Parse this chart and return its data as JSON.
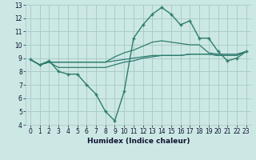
{
  "xlabel": "Humidex (Indice chaleur)",
  "xlim": [
    -0.5,
    23.5
  ],
  "ylim": [
    4,
    13
  ],
  "xticks": [
    0,
    1,
    2,
    3,
    4,
    5,
    6,
    7,
    8,
    9,
    10,
    11,
    12,
    13,
    14,
    15,
    16,
    17,
    18,
    19,
    20,
    21,
    22,
    23
  ],
  "yticks": [
    4,
    5,
    6,
    7,
    8,
    9,
    10,
    11,
    12,
    13
  ],
  "bg_color": "#cce8e4",
  "grid_color": "#aacccc",
  "line_color": "#2e7c6e",
  "main_x": [
    0,
    1,
    2,
    3,
    4,
    5,
    6,
    7,
    8,
    9,
    10,
    11,
    12,
    13,
    14,
    15,
    16,
    17,
    18,
    19,
    20,
    21,
    22,
    23
  ],
  "main_y": [
    8.9,
    8.5,
    8.8,
    8.0,
    7.8,
    7.8,
    7.0,
    6.3,
    5.0,
    4.3,
    6.5,
    10.5,
    11.5,
    12.3,
    12.8,
    12.3,
    11.5,
    11.8,
    10.5,
    10.5,
    9.5,
    8.8,
    9.0,
    9.5
  ],
  "flat1_x": [
    0,
    1,
    2,
    3,
    4,
    5,
    6,
    7,
    8,
    9,
    10,
    11,
    12,
    13,
    14,
    15,
    16,
    17,
    18,
    19,
    20,
    21,
    22,
    23
  ],
  "flat1_y": [
    8.9,
    8.5,
    8.7,
    8.7,
    8.7,
    8.7,
    8.7,
    8.7,
    8.7,
    8.8,
    8.9,
    9.0,
    9.1,
    9.2,
    9.2,
    9.2,
    9.2,
    9.3,
    9.3,
    9.3,
    9.2,
    9.2,
    9.2,
    9.5
  ],
  "flat2_x": [
    0,
    1,
    2,
    3,
    4,
    5,
    6,
    7,
    8,
    9,
    10,
    11,
    12,
    13,
    14,
    15,
    16,
    17,
    18,
    19,
    20,
    21,
    22,
    23
  ],
  "flat2_y": [
    8.9,
    8.5,
    8.7,
    8.7,
    8.7,
    8.7,
    8.7,
    8.7,
    8.7,
    9.1,
    9.4,
    9.6,
    9.9,
    10.2,
    10.3,
    10.2,
    10.1,
    10.0,
    10.0,
    9.4,
    9.3,
    9.3,
    9.3,
    9.5
  ],
  "flat3_x": [
    0,
    1,
    2,
    3,
    4,
    5,
    6,
    7,
    8,
    9,
    10,
    11,
    12,
    13,
    14,
    15,
    16,
    17,
    18,
    19,
    20,
    21,
    22,
    23
  ],
  "flat3_y": [
    8.9,
    8.5,
    8.7,
    8.3,
    8.3,
    8.3,
    8.3,
    8.3,
    8.3,
    8.5,
    8.7,
    8.8,
    9.0,
    9.1,
    9.2,
    9.2,
    9.2,
    9.3,
    9.3,
    9.3,
    9.2,
    9.2,
    9.2,
    9.5
  ]
}
